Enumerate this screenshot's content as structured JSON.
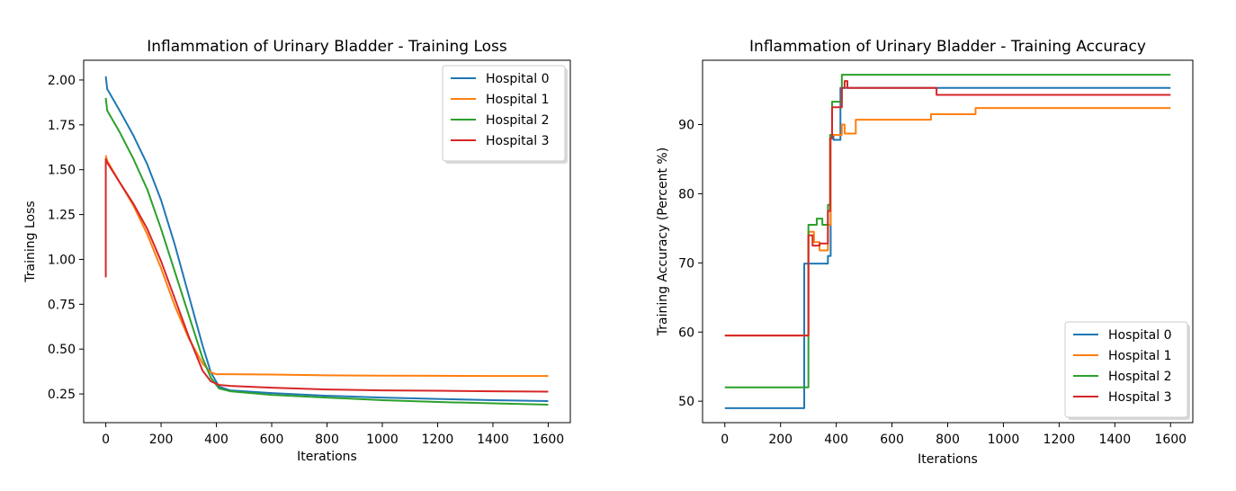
{
  "chart_data": [
    {
      "type": "line",
      "title": "Inflammation of Urinary Bladder - Training Loss",
      "xlabel": "Iterations",
      "ylabel": "Training Loss",
      "xlim": [
        -80,
        1680
      ],
      "ylim": [
        0.09,
        2.11
      ],
      "xticks": [
        0,
        200,
        400,
        600,
        800,
        1000,
        1200,
        1400,
        1600
      ],
      "yticks": [
        0.25,
        0.5,
        0.75,
        1.0,
        1.25,
        1.5,
        1.75,
        2.0
      ],
      "ytick_labels": [
        "0.25",
        "0.50",
        "0.75",
        "1.00",
        "1.25",
        "1.50",
        "1.75",
        "2.00"
      ],
      "legend_position": "top-right",
      "grid": false,
      "series": [
        {
          "name": "Hospital 0",
          "color": "#1f77b4",
          "points": [
            [
              0,
              2.02
            ],
            [
              5,
              1.95
            ],
            [
              50,
              1.83
            ],
            [
              100,
              1.69
            ],
            [
              150,
              1.53
            ],
            [
              200,
              1.33
            ],
            [
              250,
              1.08
            ],
            [
              300,
              0.8
            ],
            [
              350,
              0.52
            ],
            [
              380,
              0.37
            ],
            [
              410,
              0.29
            ],
            [
              450,
              0.27
            ],
            [
              600,
              0.255
            ],
            [
              800,
              0.24
            ],
            [
              1000,
              0.23
            ],
            [
              1200,
              0.222
            ],
            [
              1400,
              0.215
            ],
            [
              1600,
              0.21
            ]
          ]
        },
        {
          "name": "Hospital 1",
          "color": "#ff7f0e",
          "points": [
            [
              0,
              1.58
            ],
            [
              5,
              1.55
            ],
            [
              50,
              1.43
            ],
            [
              100,
              1.3
            ],
            [
              150,
              1.14
            ],
            [
              200,
              0.95
            ],
            [
              250,
              0.74
            ],
            [
              300,
              0.56
            ],
            [
              350,
              0.42
            ],
            [
              380,
              0.37
            ],
            [
              400,
              0.36
            ],
            [
              450,
              0.36
            ],
            [
              600,
              0.358
            ],
            [
              800,
              0.354
            ],
            [
              1000,
              0.352
            ],
            [
              1200,
              0.351
            ],
            [
              1400,
              0.35
            ],
            [
              1600,
              0.35
            ]
          ]
        },
        {
          "name": "Hospital 2",
          "color": "#2ca02c",
          "points": [
            [
              0,
              1.9
            ],
            [
              5,
              1.83
            ],
            [
              50,
              1.71
            ],
            [
              100,
              1.56
            ],
            [
              150,
              1.39
            ],
            [
              200,
              1.17
            ],
            [
              250,
              0.93
            ],
            [
              300,
              0.69
            ],
            [
              350,
              0.45
            ],
            [
              380,
              0.34
            ],
            [
              410,
              0.28
            ],
            [
              450,
              0.265
            ],
            [
              600,
              0.245
            ],
            [
              800,
              0.23
            ],
            [
              1000,
              0.215
            ],
            [
              1200,
              0.205
            ],
            [
              1400,
              0.198
            ],
            [
              1600,
              0.19
            ]
          ]
        },
        {
          "name": "Hospital 3",
          "color": "#d62728",
          "points": [
            [
              0,
              0.9
            ],
            [
              0,
              1.56
            ],
            [
              5,
              1.54
            ],
            [
              50,
              1.43
            ],
            [
              100,
              1.31
            ],
            [
              150,
              1.17
            ],
            [
              200,
              0.99
            ],
            [
              250,
              0.78
            ],
            [
              300,
              0.57
            ],
            [
              350,
              0.38
            ],
            [
              380,
              0.32
            ],
            [
              410,
              0.3
            ],
            [
              450,
              0.295
            ],
            [
              600,
              0.285
            ],
            [
              800,
              0.275
            ],
            [
              1000,
              0.27
            ],
            [
              1200,
              0.268
            ],
            [
              1400,
              0.265
            ],
            [
              1600,
              0.263
            ]
          ]
        }
      ]
    },
    {
      "type": "line",
      "title": "Inflammation of Urinary Bladder - Training Accuracy",
      "xlabel": "Iterations",
      "ylabel": "Training Accuracy (Percent %)",
      "xlim": [
        -80,
        1680
      ],
      "ylim": [
        46.9,
        99.3
      ],
      "xticks": [
        0,
        200,
        400,
        600,
        800,
        1000,
        1200,
        1400,
        1600
      ],
      "yticks": [
        50,
        60,
        70,
        80,
        90
      ],
      "legend_position": "bottom-right",
      "grid": false,
      "series": [
        {
          "name": "Hospital 0",
          "color": "#1f77b4",
          "points": [
            [
              0,
              49
            ],
            [
              285,
              49
            ],
            [
              285,
              69.9
            ],
            [
              370,
              69.9
            ],
            [
              370,
              71
            ],
            [
              380,
              71
            ],
            [
              380,
              88.5
            ],
            [
              390,
              88.5
            ],
            [
              390,
              87.8
            ],
            [
              415,
              87.8
            ],
            [
              415,
              95.3
            ],
            [
              1600,
              95.3
            ]
          ]
        },
        {
          "name": "Hospital 1",
          "color": "#ff7f0e",
          "points": [
            [
              0,
              59.5
            ],
            [
              300,
              59.5
            ],
            [
              300,
              74.5
            ],
            [
              320,
              74.5
            ],
            [
              320,
              73
            ],
            [
              340,
              73
            ],
            [
              340,
              71.8
            ],
            [
              370,
              71.8
            ],
            [
              370,
              75.5
            ],
            [
              380,
              75.5
            ],
            [
              380,
              88.5
            ],
            [
              420,
              88.5
            ],
            [
              420,
              90
            ],
            [
              430,
              90
            ],
            [
              430,
              88.7
            ],
            [
              470,
              88.7
            ],
            [
              470,
              90.7
            ],
            [
              740,
              90.7
            ],
            [
              740,
              91.5
            ],
            [
              900,
              91.5
            ],
            [
              900,
              92.4
            ],
            [
              1600,
              92.4
            ]
          ]
        },
        {
          "name": "Hospital 2",
          "color": "#2ca02c",
          "points": [
            [
              0,
              52
            ],
            [
              300,
              52
            ],
            [
              300,
              75.5
            ],
            [
              330,
              75.5
            ],
            [
              330,
              76.4
            ],
            [
              350,
              76.4
            ],
            [
              350,
              75.5
            ],
            [
              370,
              75.5
            ],
            [
              370,
              78.4
            ],
            [
              378,
              78.4
            ],
            [
              378,
              88.5
            ],
            [
              385,
              88.5
            ],
            [
              385,
              93.3
            ],
            [
              420,
              93.3
            ],
            [
              420,
              97.2
            ],
            [
              1600,
              97.2
            ]
          ]
        },
        {
          "name": "Hospital 3",
          "color": "#d62728",
          "points": [
            [
              0,
              59.5
            ],
            [
              300,
              59.5
            ],
            [
              300,
              74
            ],
            [
              315,
              74
            ],
            [
              315,
              72.5
            ],
            [
              340,
              72.5
            ],
            [
              340,
              72.8
            ],
            [
              370,
              72.8
            ],
            [
              370,
              77.5
            ],
            [
              378,
              77.5
            ],
            [
              378,
              88
            ],
            [
              385,
              88
            ],
            [
              385,
              92.5
            ],
            [
              420,
              92.5
            ],
            [
              420,
              95.3
            ],
            [
              430,
              95.3
            ],
            [
              430,
              96.3
            ],
            [
              440,
              96.3
            ],
            [
              440,
              95.3
            ],
            [
              760,
              95.3
            ],
            [
              760,
              94.3
            ],
            [
              1600,
              94.3
            ]
          ]
        }
      ]
    }
  ]
}
